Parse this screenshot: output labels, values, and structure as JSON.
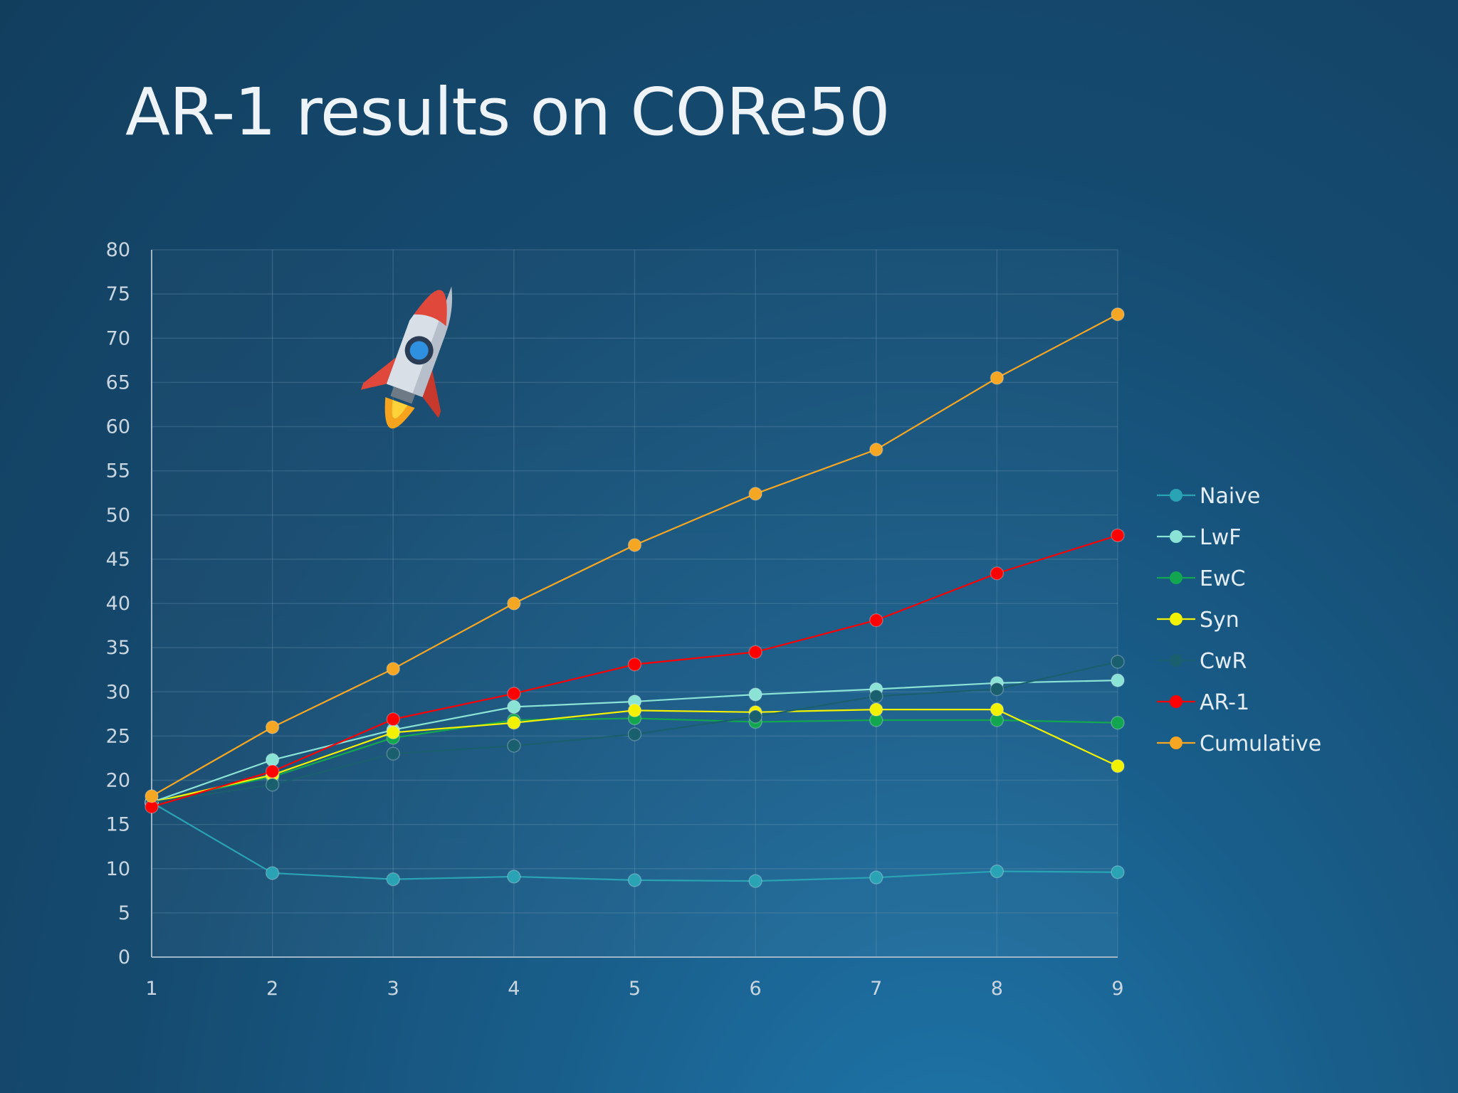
{
  "slide": {
    "title": "AR-1 results on CORe50"
  },
  "chart_data": {
    "type": "line",
    "title": "AR-1 results on CORe50",
    "x": [
      1,
      2,
      3,
      4,
      5,
      6,
      7,
      8,
      9
    ],
    "ylim": [
      0,
      80
    ],
    "yticks": [
      0,
      5,
      10,
      15,
      20,
      25,
      30,
      35,
      40,
      45,
      50,
      55,
      60,
      65,
      70,
      75,
      80
    ],
    "grid": true,
    "legend_position": "right",
    "series": [
      {
        "name": "Naive",
        "color": "#2aa3b4",
        "values": [
          17.5,
          9.5,
          8.8,
          9.1,
          8.7,
          8.6,
          9.0,
          9.7,
          9.6
        ]
      },
      {
        "name": "LwF",
        "color": "#8be3d6",
        "values": [
          17.5,
          22.3,
          25.7,
          28.3,
          28.9,
          29.7,
          30.3,
          31.0,
          31.3
        ]
      },
      {
        "name": "EwC",
        "color": "#12a650",
        "values": [
          17.5,
          20.4,
          24.8,
          26.8,
          27.0,
          26.6,
          26.8,
          26.8,
          26.5
        ]
      },
      {
        "name": "Syn",
        "color": "#f2f200",
        "values": [
          17.5,
          20.6,
          25.4,
          26.5,
          27.9,
          27.7,
          28.0,
          28.0,
          21.6
        ]
      },
      {
        "name": "CwR",
        "color": "#1a5f6e",
        "values": [
          17.5,
          19.5,
          23.0,
          23.9,
          25.2,
          27.2,
          29.5,
          30.3,
          33.4
        ]
      },
      {
        "name": "AR-1",
        "color": "#ff0000",
        "values": [
          17.0,
          21.0,
          26.9,
          29.8,
          33.1,
          34.5,
          38.1,
          43.4,
          47.7
        ]
      },
      {
        "name": "Cumulative",
        "color": "#f5a623",
        "values": [
          18.2,
          26.0,
          32.6,
          40.0,
          46.6,
          52.4,
          57.4,
          65.5,
          72.7
        ]
      }
    ]
  }
}
